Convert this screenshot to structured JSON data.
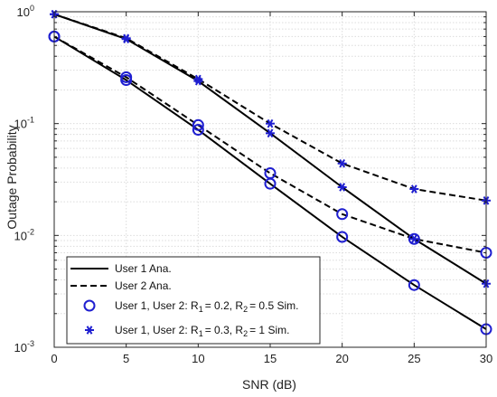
{
  "chart_data": {
    "type": "line",
    "xlabel": "SNR (dB)",
    "ylabel": "Outage Probability",
    "xlim": [
      0,
      30
    ],
    "ylim": [
      0.001,
      1
    ],
    "yscale": "log",
    "grid": true,
    "legend_position": "bottom-left",
    "x": [
      0,
      5,
      10,
      15,
      20,
      25,
      30
    ],
    "x_ticks": [
      "0",
      "5",
      "10",
      "15",
      "20",
      "25",
      "30"
    ],
    "y_ticks": [
      {
        "value": 1,
        "mantissa": "10",
        "exp": "0"
      },
      {
        "value": 0.1,
        "mantissa": "10",
        "exp": "-1"
      },
      {
        "value": 0.01,
        "mantissa": "10",
        "exp": "-2"
      },
      {
        "value": 0.001,
        "mantissa": "10",
        "exp": "-3"
      }
    ],
    "series": [
      {
        "group": "R1 = 0.2, R2 = 0.5",
        "user": "User 1",
        "style": "solid",
        "values": [
          0.6,
          0.245,
          0.088,
          0.029,
          0.0097,
          0.0036,
          0.00145
        ]
      },
      {
        "group": "R1 = 0.2, R2 = 0.5",
        "user": "User 2",
        "style": "dashed",
        "values": [
          0.6,
          0.26,
          0.097,
          0.036,
          0.0155,
          0.0093,
          0.007
        ]
      },
      {
        "group": "R1 = 0.3, R2 = 1",
        "user": "User 1",
        "style": "solid",
        "values": [
          0.95,
          0.57,
          0.24,
          0.082,
          0.027,
          0.0093,
          0.0037
        ]
      },
      {
        "group": "R1 = 0.3, R2 = 1",
        "user": "User 2",
        "style": "dashed",
        "values": [
          0.95,
          0.58,
          0.25,
          0.1,
          0.044,
          0.026,
          0.0205
        ]
      }
    ],
    "sim_markers": [
      {
        "symbol": "circle",
        "values": [
          0.6,
          0.245,
          0.088,
          0.029,
          0.0097,
          0.0036,
          0.00145
        ]
      },
      {
        "symbol": "circle",
        "values": [
          0.6,
          0.26,
          0.097,
          0.036,
          0.0155,
          0.0093,
          0.007
        ]
      },
      {
        "symbol": "asterisk",
        "values": [
          0.95,
          0.57,
          0.24,
          0.082,
          0.027,
          0.0093,
          0.0037
        ]
      },
      {
        "symbol": "asterisk",
        "values": [
          0.95,
          0.58,
          0.25,
          0.1,
          0.044,
          0.026,
          0.0205
        ]
      }
    ],
    "legend": {
      "solid_label": "User 1 Ana.",
      "dashed_label": "User 2 Ana.",
      "circle_prefix": "User 1, User 2: R",
      "circle_r1_sub": "1",
      "circle_mid": "= 0.2, R",
      "circle_r2_sub": "2",
      "circle_suffix": "= 0.5 Sim.",
      "star_prefix": "User 1, User 2: R",
      "star_r1_sub": "1",
      "star_mid": "= 0.3, R",
      "star_r2_sub": "2",
      "star_suffix": "= 1 Sim."
    },
    "colors": {
      "line": "#000000",
      "marker": "#1f1fd0",
      "grid": "#dcdcdc",
      "axes": "#262626"
    }
  }
}
